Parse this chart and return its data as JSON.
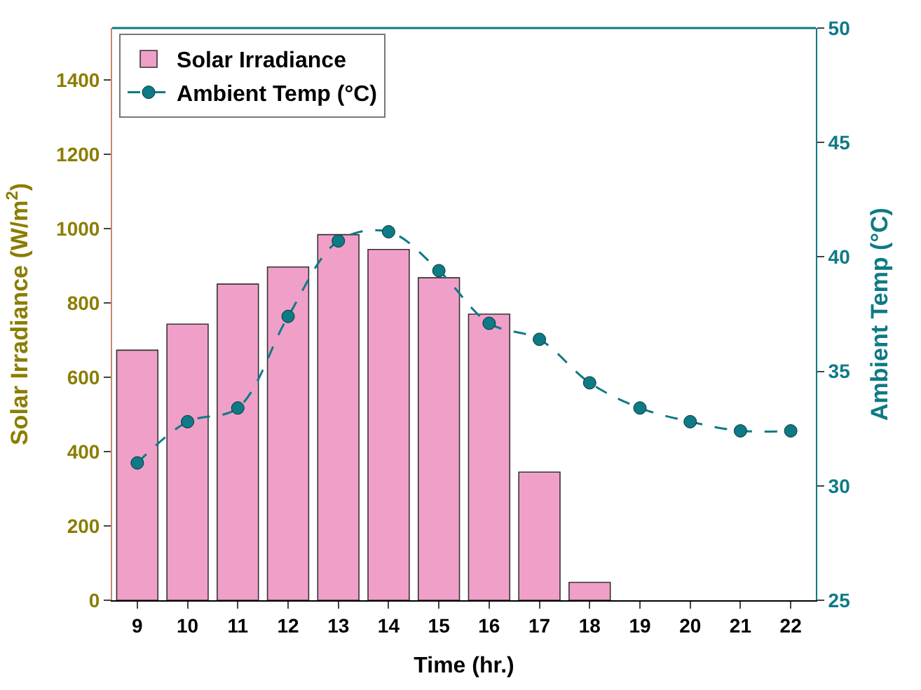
{
  "chart_data": {
    "type": "bar",
    "xlabel": "Time (hr.)",
    "ylabel": "Solar Irradiance (W/m$^{2}$)",
    "y2label": "Ambient Temp (°C)",
    "categories": [
      "9",
      "10",
      "11",
      "12",
      "13",
      "14",
      "15",
      "16",
      "17",
      "18",
      "19",
      "20",
      "21",
      "22"
    ],
    "series": [
      {
        "name": "Solar Irradiance",
        "color": "#f0a0c8",
        "values": [
          673,
          743,
          851,
          897,
          984,
          944,
          868,
          770,
          345,
          48,
          0,
          0,
          0,
          0
        ]
      },
      {
        "name": "Ambient Temp (°C)",
        "type": "line",
        "axis": "y2",
        "color": "#0e7a86",
        "marker": "circle",
        "line_style": "dashed",
        "values": [
          31.0,
          32.8,
          33.4,
          37.4,
          40.7,
          41.1,
          39.4,
          37.1,
          36.4,
          34.5,
          33.4,
          32.8,
          32.4,
          32.4
        ]
      }
    ],
    "ylim": [
      0,
      1540
    ],
    "yticks": [
      0,
      200,
      400,
      600,
      800,
      1000,
      1200,
      1400
    ],
    "y2lim": [
      25,
      50
    ],
    "y2ticks": [
      25,
      30,
      35,
      40,
      45,
      50
    ],
    "legend": "top left"
  }
}
